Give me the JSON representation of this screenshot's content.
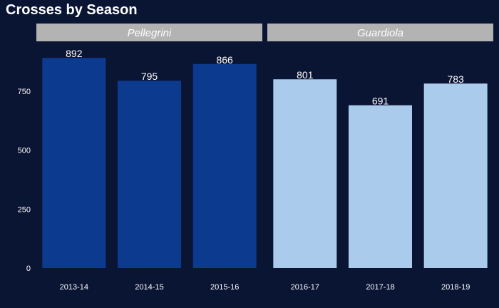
{
  "chart_data": {
    "type": "bar",
    "title": "Crosses by Season",
    "xlabel": "",
    "ylabel": "",
    "ylim": [
      0,
      950
    ],
    "yticks": [
      0,
      250,
      500,
      750
    ],
    "grid": false,
    "legend": "none",
    "colors": {
      "background": "#0a1433",
      "strip": "#b3b3b3",
      "Pellegrini": "#0c3a8f",
      "Guardiola": "#abcbec"
    },
    "facets": [
      {
        "name": "Pellegrini",
        "categories": [
          "2013-14",
          "2014-15",
          "2015-16"
        ],
        "values": [
          892,
          795,
          866
        ]
      },
      {
        "name": "Guardiola",
        "categories": [
          "2016-17",
          "2017-18",
          "2018-19"
        ],
        "values": [
          801,
          691,
          783
        ]
      }
    ]
  }
}
